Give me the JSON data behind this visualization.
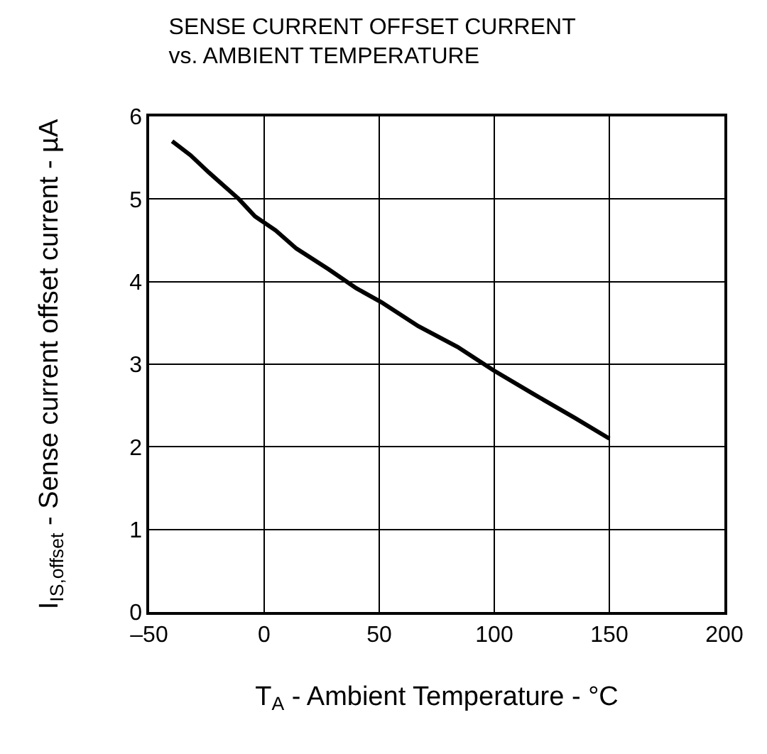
{
  "chart_data": {
    "type": "line",
    "title": "SENSE CURRENT OFFSET CURRENT\nvs. AMBIENT TEMPERATURE",
    "xlabel": "T$_{A}$ - Ambient Temperature - °C",
    "ylabel": "I$_{IS,offset}$ - Sense current offset current - µA",
    "x": [
      -40,
      -32,
      -24,
      -11,
      -4,
      5,
      14,
      28,
      40,
      51,
      67,
      84,
      100,
      117,
      135,
      150
    ],
    "series": [
      {
        "color": "#000000",
        "values": [
          5.7,
          5.53,
          5.32,
          5.0,
          4.79,
          4.62,
          4.4,
          4.15,
          3.92,
          3.75,
          3.46,
          3.21,
          2.92,
          2.64,
          2.35,
          2.1
        ]
      }
    ],
    "xlim": [
      -50,
      200
    ],
    "xticks": [
      {
        "value": -50,
        "label": "–50"
      },
      0,
      50,
      100,
      150,
      200
    ],
    "ylim": [
      0,
      6
    ],
    "yticks": [
      0,
      1,
      2,
      3,
      4,
      5,
      6
    ],
    "grid": true,
    "marker": "none",
    "line_style": "solid"
  }
}
